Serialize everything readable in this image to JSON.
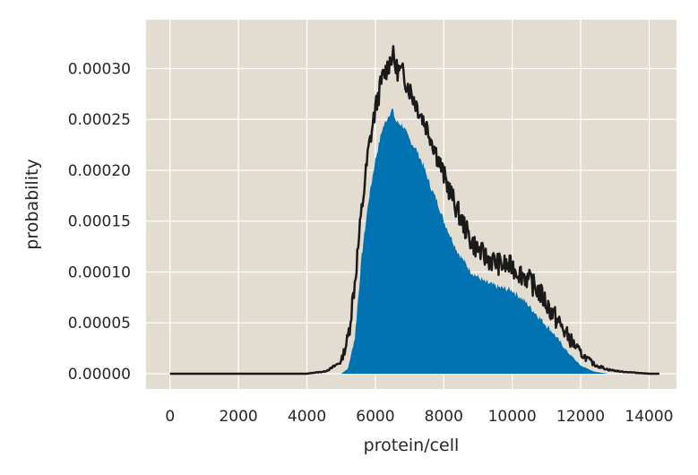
{
  "chart_data": {
    "type": "area",
    "title": "",
    "xlabel": "protein/cell",
    "ylabel": "probability",
    "xlim": [
      -700,
      14800
    ],
    "ylim": [
      -1.5e-05,
      0.000348
    ],
    "xticks": [
      0,
      2000,
      4000,
      6000,
      8000,
      10000,
      12000,
      14000
    ],
    "xtick_labels": [
      "0",
      "2000",
      "4000",
      "6000",
      "8000",
      "10000",
      "12000",
      "14000"
    ],
    "yticks": [
      0.0,
      5e-05,
      0.0001,
      0.00015,
      0.0002,
      0.00025,
      0.0003
    ],
    "ytick_labels": [
      "0.00000",
      "0.00005",
      "0.00010",
      "0.00015",
      "0.00020",
      "0.00025",
      "0.00030"
    ],
    "grid": true,
    "colors": {
      "background": "#e3dcd0",
      "grid": "#ffffff",
      "fill": "#0072b2",
      "line": "#1a1a1a"
    },
    "series": [
      {
        "x": [
          5000,
          5200,
          5400,
          5600,
          5800,
          6000,
          6200,
          6400,
          6500,
          6600,
          6800,
          7000,
          7200,
          7400,
          7600,
          7800,
          8000,
          8400,
          8800,
          9200,
          9600,
          10000,
          10400,
          10800,
          11200,
          11600,
          12000,
          12400,
          12800
        ],
        "values": [
          0.0,
          5e-06,
          3.5e-05,
          0.000115,
          0.00017,
          0.00021,
          0.00024,
          0.000255,
          0.00026,
          0.000248,
          0.000244,
          0.00023,
          0.00022,
          0.000205,
          0.000185,
          0.00017,
          0.00015,
          0.00012,
          0.0001,
          9e-05,
          8.5e-05,
          8.2e-05,
          7e-05,
          5.5e-05,
          4e-05,
          2.2e-05,
          8e-06,
          2e-06,
          0.0
        ]
      },
      {
        "x": [
          0,
          2000,
          4000,
          4200,
          4500,
          4700,
          5000,
          5200,
          5400,
          5600,
          5800,
          6000,
          6200,
          6400,
          6500,
          6600,
          6800,
          7000,
          7200,
          7400,
          7600,
          7800,
          8000,
          8400,
          8800,
          9200,
          9600,
          10000,
          10400,
          10800,
          11200,
          11600,
          12000,
          12400,
          12800,
          13200,
          13600,
          14000,
          14300
        ],
        "values": [
          0.0,
          0.0,
          0.0,
          1e-06,
          2e-06,
          5e-06,
          1.2e-05,
          3.5e-05,
          9e-05,
          0.00016,
          0.00022,
          0.00026,
          0.00029,
          0.000305,
          0.000315,
          0.0003,
          0.000295,
          0.00028,
          0.000265,
          0.00025,
          0.000235,
          0.000215,
          0.000195,
          0.00016,
          0.00013,
          0.000115,
          0.000108,
          0.000105,
          9.5e-05,
          8e-05,
          5.8e-05,
          3.8e-05,
          2e-05,
          9e-06,
          4e-06,
          2e-06,
          1e-06,
          0.0,
          0.0
        ]
      }
    ]
  }
}
